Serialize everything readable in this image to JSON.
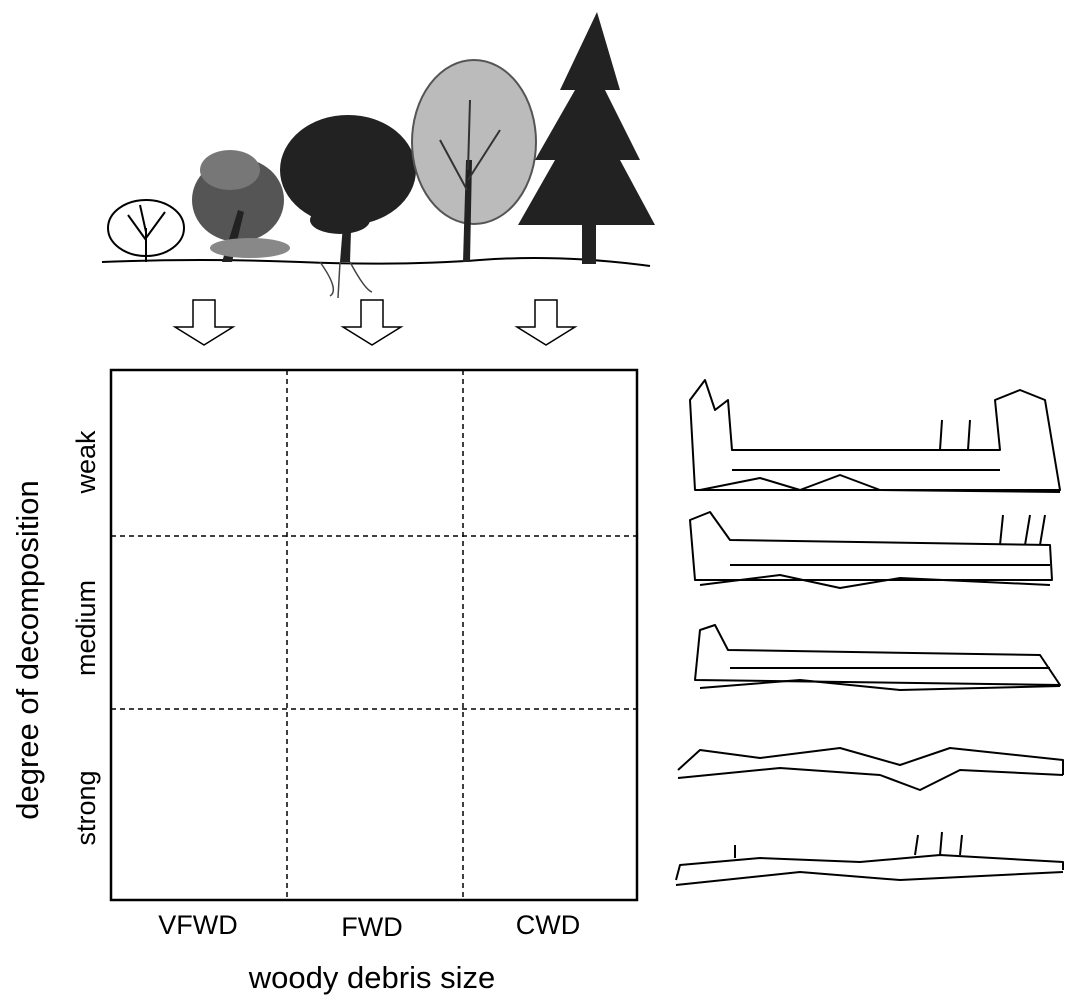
{
  "axes": {
    "y_label": "degree of decomposition",
    "x_label": "woody debris size"
  },
  "rows": [
    "weak",
    "medium",
    "strong"
  ],
  "columns": [
    "VFWD",
    "FWD",
    "CWD"
  ]
}
